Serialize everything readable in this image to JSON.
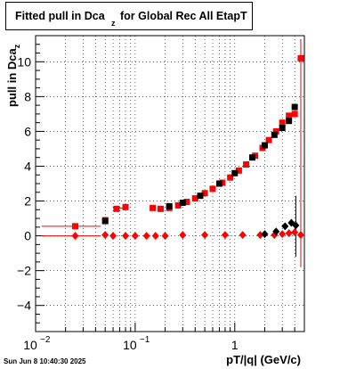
{
  "chart_data": {
    "type": "scatter",
    "title_main": "Fitted pull in Dca",
    "title_sub": "z",
    "title_tail": "for Global Rec All EtapT",
    "ylabel_main": "pull in Dca",
    "ylabel_sub": "z",
    "xlabel": "pT/|q| (GeV/c)",
    "x_scale": "log",
    "xlim": [
      0.01,
      5
    ],
    "ylim": [
      -5.5,
      11.5
    ],
    "x_tick_labels": [
      {
        "x": 0.01,
        "base": "10",
        "exp": "−2"
      },
      {
        "x": 0.1,
        "base": "10",
        "exp": "−1"
      },
      {
        "x": 1,
        "base": "1",
        "exp": ""
      }
    ],
    "y_ticks": [
      -4,
      -2,
      0,
      2,
      4,
      6,
      8,
      10
    ],
    "grid": true,
    "series": [
      {
        "color": "#ff0000",
        "marker": "square",
        "points": [
          [
            0.025,
            0.55
          ],
          [
            0.05,
            0.9
          ],
          [
            0.065,
            1.55
          ],
          [
            0.08,
            1.65
          ],
          [
            0.15,
            1.6
          ],
          [
            0.18,
            1.55
          ],
          [
            0.22,
            1.6
          ],
          [
            0.27,
            1.75
          ],
          [
            0.33,
            1.95
          ],
          [
            0.4,
            2.15
          ],
          [
            0.5,
            2.45
          ],
          [
            0.6,
            2.7
          ],
          [
            0.75,
            3.05
          ],
          [
            0.9,
            3.35
          ],
          [
            1.1,
            3.75
          ],
          [
            1.3,
            4.1
          ],
          [
            1.6,
            4.6
          ],
          [
            1.9,
            5.05
          ],
          [
            2.2,
            5.5
          ],
          [
            2.6,
            6.0
          ],
          [
            3.0,
            6.5
          ],
          [
            3.5,
            6.9
          ],
          [
            4.0,
            7.0
          ],
          [
            4.6,
            10.2
          ]
        ]
      },
      {
        "color": "#000000",
        "marker": "square",
        "points": [
          [
            0.05,
            0.85
          ],
          [
            0.22,
            1.7
          ],
          [
            0.3,
            1.9
          ],
          [
            0.45,
            2.3
          ],
          [
            0.7,
            3.0
          ],
          [
            1.0,
            3.6
          ],
          [
            1.5,
            4.5
          ],
          [
            2.0,
            5.2
          ],
          [
            2.5,
            5.8
          ],
          [
            3.0,
            6.2
          ],
          [
            3.5,
            6.6
          ],
          [
            4.0,
            7.4
          ]
        ]
      },
      {
        "color": "#ff0000",
        "marker": "diamond",
        "points": [
          [
            0.025,
            0.0
          ],
          [
            0.05,
            0.05
          ],
          [
            0.06,
            0.0
          ],
          [
            0.08,
            0.0
          ],
          [
            0.1,
            0.0
          ],
          [
            0.13,
            0.0
          ],
          [
            0.16,
            0.0
          ],
          [
            0.2,
            0.0
          ],
          [
            0.3,
            0.05
          ],
          [
            0.5,
            0.05
          ],
          [
            0.8,
            0.05
          ],
          [
            1.2,
            0.05
          ],
          [
            1.8,
            0.05
          ],
          [
            2.5,
            0.05
          ],
          [
            3.0,
            0.1
          ],
          [
            3.5,
            0.15
          ],
          [
            4.0,
            0.2
          ],
          [
            4.6,
            0.05
          ]
        ]
      },
      {
        "color": "#000000",
        "marker": "diamond",
        "points": [
          [
            2.0,
            0.1
          ],
          [
            2.6,
            0.25
          ],
          [
            3.2,
            0.55
          ],
          [
            3.7,
            0.75
          ],
          [
            4.1,
            0.6
          ]
        ]
      }
    ],
    "timestamp": "Sun Jun  8 10:40:30 2025"
  }
}
